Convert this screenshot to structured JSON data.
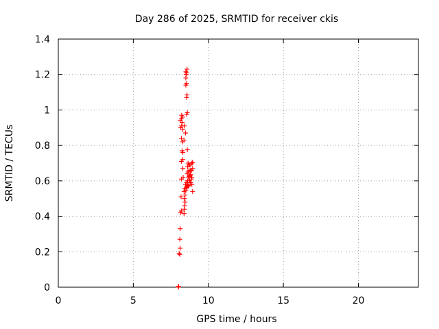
{
  "chart_data": {
    "type": "scatter",
    "title": "Day 286 of 2025, SRMTID for receiver ckis",
    "xlabel": "GPS time / hours",
    "ylabel": "SRMTID / TECUs",
    "xlim": [
      0,
      24
    ],
    "ylim": [
      0,
      1.4
    ],
    "xticks": [
      0,
      5,
      10,
      15,
      20
    ],
    "yticks": [
      0,
      0.2,
      0.4,
      0.6,
      0.8,
      1,
      1.2,
      1.4
    ],
    "xtick_labels": [
      "0",
      "5",
      "10",
      "15",
      "20"
    ],
    "ytick_labels": [
      "0",
      "0.2",
      "0.4",
      "0.6",
      "0.8",
      "1",
      "1.2",
      "1.4"
    ],
    "grid": true,
    "marker": "plus",
    "series": [
      {
        "color": "#ff0000",
        "points": [
          [
            8.0,
            0.0
          ],
          [
            8.02,
            0.005
          ],
          [
            8.05,
            0.19
          ],
          [
            8.1,
            0.185
          ],
          [
            8.12,
            0.22
          ],
          [
            8.1,
            0.27
          ],
          [
            8.12,
            0.33
          ],
          [
            8.15,
            0.42
          ],
          [
            8.2,
            0.43
          ],
          [
            8.38,
            0.415
          ],
          [
            8.4,
            0.44
          ],
          [
            8.42,
            0.46
          ],
          [
            8.45,
            0.48
          ],
          [
            8.18,
            0.51
          ],
          [
            8.4,
            0.5
          ],
          [
            8.45,
            0.52
          ],
          [
            8.38,
            0.54
          ],
          [
            8.5,
            0.545
          ],
          [
            8.42,
            0.555
          ],
          [
            8.52,
            0.56
          ],
          [
            8.58,
            0.565
          ],
          [
            8.6,
            0.575
          ],
          [
            8.48,
            0.58
          ],
          [
            8.65,
            0.57
          ],
          [
            8.7,
            0.575
          ],
          [
            8.55,
            0.59
          ],
          [
            8.62,
            0.6
          ],
          [
            8.75,
            0.6
          ],
          [
            8.8,
            0.59
          ],
          [
            8.85,
            0.61
          ],
          [
            8.9,
            0.58
          ],
          [
            8.95,
            0.54
          ],
          [
            8.68,
            0.62
          ],
          [
            8.72,
            0.625
          ],
          [
            8.78,
            0.63
          ],
          [
            8.82,
            0.635
          ],
          [
            8.9,
            0.62
          ],
          [
            8.2,
            0.61
          ],
          [
            8.32,
            0.62
          ],
          [
            8.6,
            0.64
          ],
          [
            8.65,
            0.65
          ],
          [
            8.72,
            0.66
          ],
          [
            8.8,
            0.655
          ],
          [
            8.88,
            0.66
          ],
          [
            8.95,
            0.67
          ],
          [
            8.3,
            0.67
          ],
          [
            8.62,
            0.68
          ],
          [
            8.75,
            0.69
          ],
          [
            8.82,
            0.69
          ],
          [
            8.9,
            0.7
          ],
          [
            8.95,
            0.705
          ],
          [
            8.2,
            0.71
          ],
          [
            8.3,
            0.72
          ],
          [
            8.65,
            0.7
          ],
          [
            8.7,
            0.69
          ],
          [
            8.25,
            0.77
          ],
          [
            8.3,
            0.76
          ],
          [
            8.6,
            0.775
          ],
          [
            8.28,
            0.82
          ],
          [
            8.38,
            0.83
          ],
          [
            8.2,
            0.84
          ],
          [
            8.48,
            0.87
          ],
          [
            8.3,
            0.89
          ],
          [
            8.15,
            0.9
          ],
          [
            8.22,
            0.91
          ],
          [
            8.4,
            0.91
          ],
          [
            8.25,
            0.93
          ],
          [
            8.12,
            0.94
          ],
          [
            8.2,
            0.95
          ],
          [
            8.28,
            0.96
          ],
          [
            8.22,
            0.97
          ],
          [
            8.55,
            0.975
          ],
          [
            8.6,
            0.985
          ],
          [
            8.55,
            1.07
          ],
          [
            8.58,
            1.085
          ],
          [
            8.5,
            1.14
          ],
          [
            8.55,
            1.15
          ],
          [
            8.5,
            1.18
          ],
          [
            8.52,
            1.2
          ],
          [
            8.55,
            1.21
          ],
          [
            8.5,
            1.215
          ],
          [
            8.58,
            1.23
          ]
        ]
      }
    ]
  }
}
